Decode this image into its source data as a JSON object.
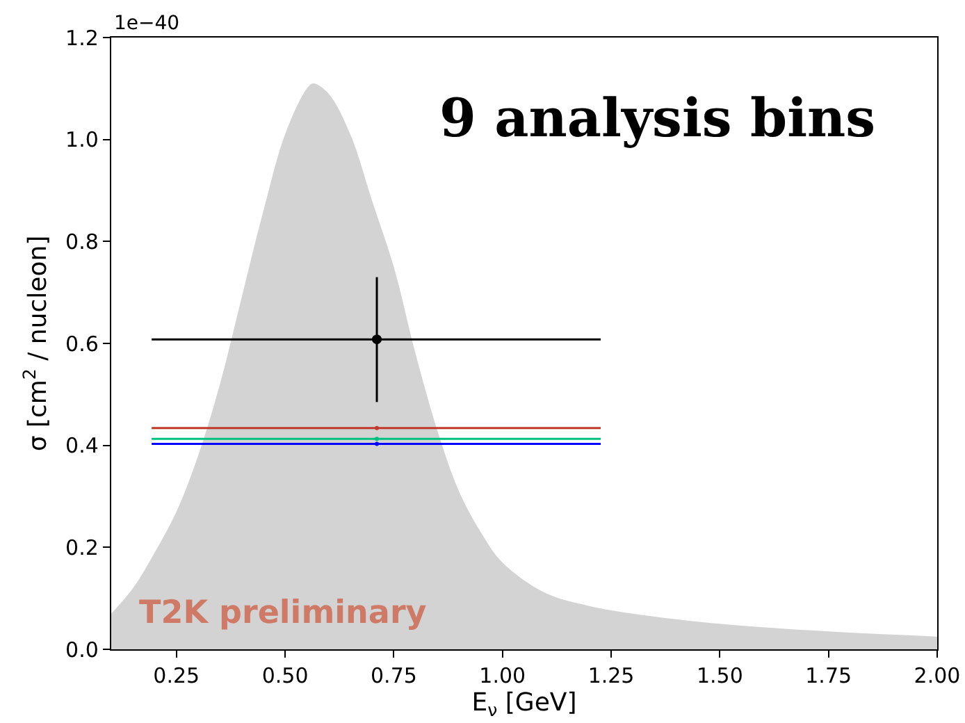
{
  "chart_data": {
    "type": "scatter",
    "xlabel": "E$_{ν}$ [GeV]",
    "ylabel": "σ [cm$^{2}$ / nucleon]",
    "annotations": [
      "1e−40",
      "9 analysis bins",
      "T2K preliminary"
    ],
    "xlim": [
      0.1,
      2.0
    ],
    "xticks": [
      {
        "value": 0.25,
        "label": "0.25"
      },
      {
        "value": 0.5,
        "label": "0.50"
      },
      {
        "value": 0.75,
        "label": "0.75"
      },
      {
        "value": 1.0,
        "label": "1.00"
      },
      {
        "value": 1.25,
        "label": "1.25"
      },
      {
        "value": 1.5,
        "label": "1.50"
      },
      {
        "value": 1.75,
        "label": "1.75"
      },
      {
        "value": 2.0,
        "label": "2.00"
      }
    ],
    "ylim": [
      0,
      1.2
    ],
    "yticks": [
      {
        "value": 0,
        "label": "0.0"
      },
      0.2,
      0.4,
      0.6,
      0.8,
      {
        "value": 1.0,
        "label": "1.0"
      },
      1.2
    ],
    "grid": false,
    "series": [
      {
        "type": "area",
        "color": "#d3d3d3",
        "x": [
          0.1,
          0.15,
          0.2,
          0.25,
          0.3,
          0.35,
          0.4,
          0.45,
          0.5,
          0.55,
          0.565,
          0.6,
          0.65,
          0.7,
          0.75,
          0.8,
          0.85,
          0.9,
          0.95,
          1.0,
          1.1,
          1.2,
          1.3,
          1.5,
          1.75,
          2.0
        ],
        "values": [
          0.07,
          0.12,
          0.19,
          0.27,
          0.38,
          0.52,
          0.69,
          0.86,
          1.01,
          1.1,
          1.11,
          1.09,
          1.01,
          0.88,
          0.75,
          0.58,
          0.43,
          0.31,
          0.23,
          0.17,
          0.11,
          0.085,
          0.07,
          0.05,
          0.035,
          0.025
        ]
      },
      {
        "color": "#c0392b",
        "marker": "circle",
        "x": [
          0.711
        ],
        "values": [
          0.434
        ],
        "xerrors": [
          [
            0.193,
            1.226
          ]
        ]
      },
      {
        "color": "#00c080",
        "marker": "circle",
        "x": [
          0.711
        ],
        "values": [
          0.413
        ],
        "xerrors": [
          [
            0.193,
            1.226
          ]
        ]
      },
      {
        "color": "#0000ff",
        "marker": "circle",
        "x": [
          0.711
        ],
        "values": [
          0.403
        ],
        "xerrors": [
          [
            0.193,
            1.226
          ]
        ]
      },
      {
        "color": "#000000",
        "marker": "circle",
        "x": [
          0.711
        ],
        "values": [
          0.608
        ],
        "errors": [
          [
            0.485,
            0.73
          ]
        ],
        "xerrors": [
          [
            0.193,
            1.226
          ]
        ]
      }
    ]
  }
}
